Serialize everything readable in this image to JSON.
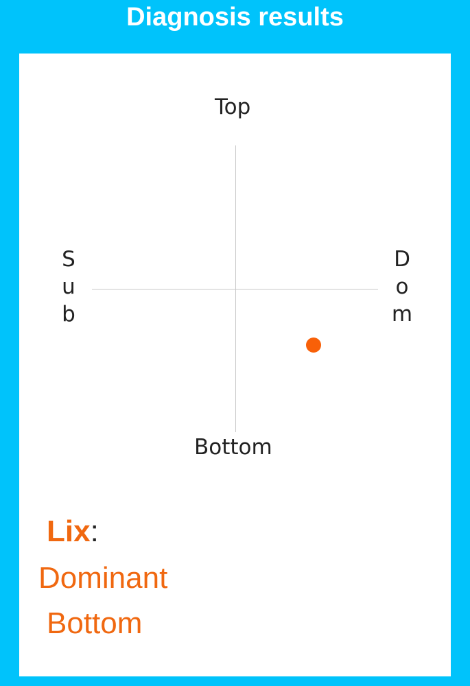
{
  "header": {
    "title": "Diagnosis results"
  },
  "chart": {
    "labels": {
      "top": "Top",
      "bottom": "Bottom",
      "left": "Sub",
      "right": "Dom"
    },
    "point": {
      "x": 0.55,
      "y": -0.39,
      "color": "#f86008"
    },
    "range": [
      -1,
      1
    ]
  },
  "result": {
    "name": "Lix",
    "separator": ":",
    "line1": "Dominant",
    "line2": "Bottom",
    "color": "#f06810"
  }
}
